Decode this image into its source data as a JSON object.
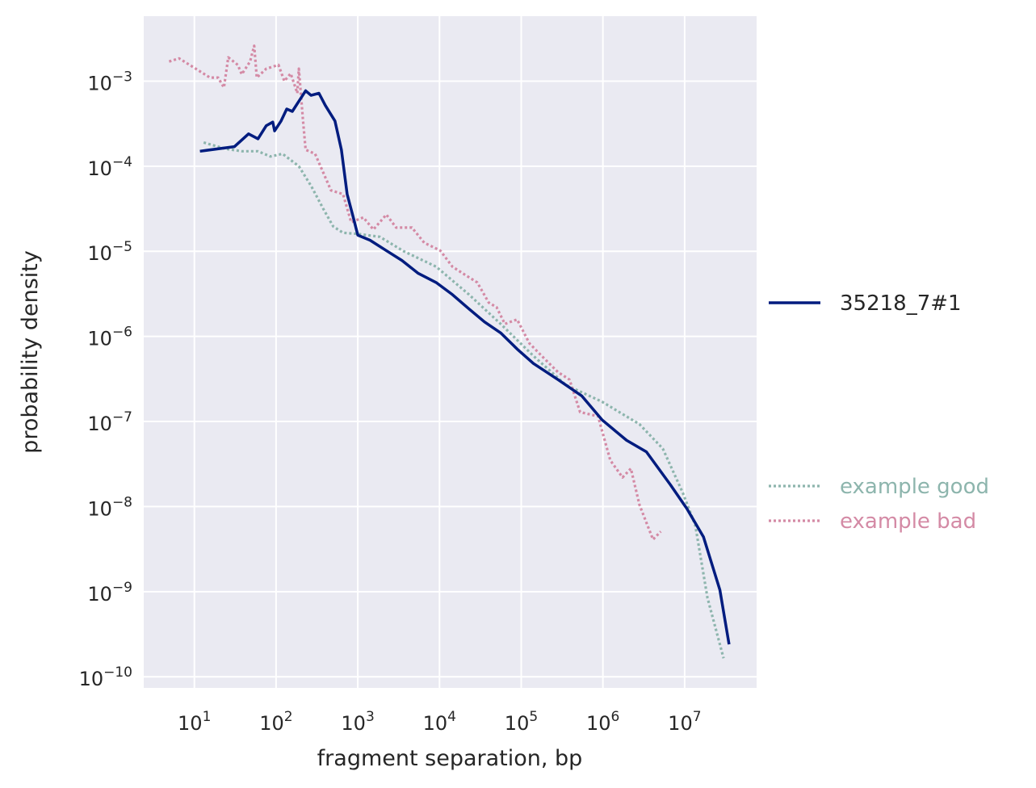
{
  "chart_data": {
    "type": "line",
    "xscale": "log",
    "yscale": "log",
    "xlabel": "fragment separation, bp",
    "ylabel": "probability density",
    "xlim": [
      2.4,
      76000000.0
    ],
    "ylim": [
      7.4e-11,
      0.0058
    ],
    "grid": true,
    "legend_placement": "right, outside",
    "xticks": [
      {
        "base": "10",
        "exp": "1",
        "value": 10
      },
      {
        "base": "10",
        "exp": "2",
        "value": 100
      },
      {
        "base": "10",
        "exp": "3",
        "value": 1000
      },
      {
        "base": "10",
        "exp": "4",
        "value": 10000
      },
      {
        "base": "10",
        "exp": "5",
        "value": 100000
      },
      {
        "base": "10",
        "exp": "6",
        "value": 1000000
      },
      {
        "base": "10",
        "exp": "7",
        "value": 10000000
      }
    ],
    "yticks": [
      {
        "base": "10",
        "exp": "−3",
        "value": 0.001
      },
      {
        "base": "10",
        "exp": "−4",
        "value": 0.0001
      },
      {
        "base": "10",
        "exp": "−5",
        "value": 1e-05
      },
      {
        "base": "10",
        "exp": "−6",
        "value": 1e-06
      },
      {
        "base": "10",
        "exp": "−7",
        "value": 1e-07
      },
      {
        "base": "10",
        "exp": "−8",
        "value": 1e-08
      },
      {
        "base": "10",
        "exp": "−9",
        "value": 1e-09
      },
      {
        "base": "10",
        "exp": "−10",
        "value": 1e-10
      }
    ],
    "series": [
      {
        "name": "35218_7#1",
        "color": "#001c7f",
        "style": "solid",
        "x": [
          11.7,
          31,
          46,
          60,
          76,
          91,
          96,
          115,
          135,
          158,
          190,
          230,
          268,
          335,
          400,
          525,
          630,
          740,
          890,
          1000,
          1410,
          2230,
          3470,
          5500,
          9100,
          14400,
          23000,
          35500,
          56000,
          89000,
          141000,
          282000,
          550000,
          980000,
          1950000,
          3400000,
          6700000,
          10700000,
          17000000,
          27000000,
          35000000
        ],
        "y": [
          0.00015,
          0.00017,
          0.00024,
          0.00021,
          0.0003,
          0.00033,
          0.00026,
          0.00034,
          0.00047,
          0.00044,
          0.00058,
          0.00077,
          0.00068,
          0.00072,
          0.00052,
          0.00034,
          0.000156,
          4.7e-05,
          2.4e-05,
          1.55e-05,
          1.35e-05,
          1.02e-05,
          7.8e-06,
          5.5e-06,
          4.3e-06,
          3.1e-06,
          2.1e-06,
          1.48e-06,
          1.1e-06,
          7.1e-07,
          4.8e-07,
          3.1e-07,
          2e-07,
          1.04e-07,
          6e-08,
          4.4e-08,
          1.8e-08,
          9.4e-09,
          4.4e-09,
          1.05e-09,
          2.4e-10
        ]
      },
      {
        "name": "example good",
        "color": "#8db5ad",
        "style": "dotted",
        "x": [
          13,
          24,
          38,
          60,
          85,
          120,
          190,
          270,
          375,
          500,
          660,
          1000,
          1860,
          3650,
          9100,
          23000,
          56000,
          141000,
          350000,
          980000,
          2800000,
          5400000,
          9500000,
          13500000,
          19000000,
          30000000
        ],
        "y": [
          0.00019,
          0.00016,
          0.00015,
          0.00015,
          0.00013,
          0.00014,
          0.0001,
          5.8e-05,
          3.2e-05,
          1.96e-05,
          1.65e-05,
          1.6e-05,
          1.48e-05,
          1e-05,
          6.6e-06,
          3.1e-06,
          1.4e-06,
          5.9e-07,
          2.7e-07,
          1.7e-07,
          9.3e-08,
          4.8e-08,
          1.45e-08,
          6e-09,
          8.5e-10,
          1.65e-10
        ]
      },
      {
        "name": "example bad",
        "color": "#d48aa5",
        "style": "dotted",
        "x": [
          4.9,
          6.5,
          9.8,
          15.5,
          19.5,
          23,
          26,
          34,
          38,
          48,
          54,
          58,
          76,
          107,
          126,
          151,
          182,
          190,
          214,
          230,
          300,
          470,
          660,
          830,
          1170,
          1550,
          2240,
          2950,
          4600,
          6500,
          10200,
          14400,
          20500,
          29000,
          40000,
          50000,
          63000,
          89000,
          126000,
          178000,
          282000,
          390000,
          525000,
          870000,
          1230000,
          1740000,
          2200000,
          2800000,
          4100000,
          5100000
        ],
        "y": [
          0.0017,
          0.00185,
          0.00145,
          0.0011,
          0.0011,
          0.00084,
          0.0019,
          0.00155,
          0.0012,
          0.0017,
          0.0026,
          0.0011,
          0.0014,
          0.00155,
          0.001,
          0.00123,
          0.00072,
          0.0014,
          0.00034,
          0.000156,
          0.00014,
          5.2e-05,
          4.7e-05,
          2.2e-05,
          2.5e-05,
          1.8e-05,
          2.7e-05,
          1.9e-05,
          1.9e-05,
          1.26e-05,
          1.02e-05,
          6.6e-06,
          5.3e-06,
          4.3e-06,
          2.5e-06,
          2.2e-06,
          1.4e-06,
          1.58e-06,
          8.3e-07,
          5.9e-07,
          3.8e-07,
          3.1e-07,
          1.29e-07,
          1.15e-07,
          3.5e-08,
          2.2e-08,
          2.8e-08,
          1.05e-08,
          4.1e-09,
          5.1e-09
        ]
      }
    ]
  },
  "colors": {
    "background": "#eaeaf2",
    "grid": "#ffffff"
  }
}
